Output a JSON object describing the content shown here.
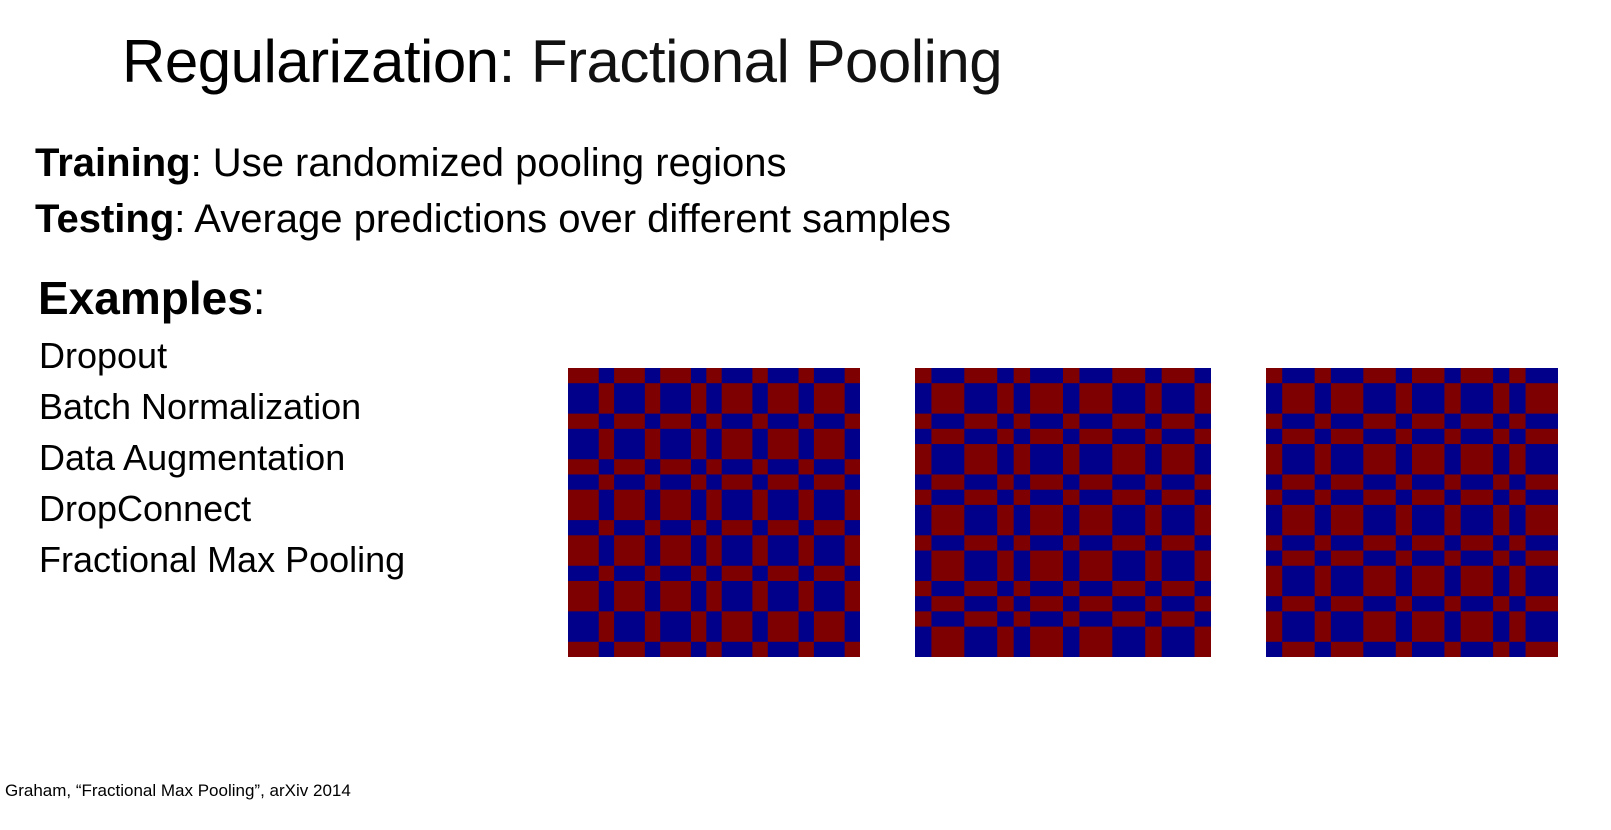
{
  "slide": {
    "title_bold": "Regularization",
    "title_rest": ": Fractional Pooling",
    "training_label": "Training",
    "training_text": ": Use randomized pooling regions",
    "testing_label": "Testing",
    "testing_text": ": Average predictions over different samples",
    "examples_label": "Examples",
    "examples_colon": ":",
    "examples": [
      "Dropout",
      "Batch Normalization",
      "Data Augmentation",
      "DropConnect",
      "Fractional Max Pooling"
    ],
    "citation": "Graham, “Fractional Max Pooling”, arXiv 2014"
  },
  "colors": {
    "region_a": "#7f0000",
    "region_b": "#00008b"
  },
  "pooling_grids": [
    {
      "col_widths": [
        2,
        1,
        2,
        1,
        2,
        1,
        1,
        2,
        1,
        2,
        1,
        2,
        1
      ],
      "row_heights": [
        1,
        2,
        1,
        2,
        1,
        1,
        2,
        1,
        2,
        1,
        2,
        2,
        1
      ]
    },
    {
      "col_widths": [
        1,
        2,
        2,
        1,
        1,
        2,
        1,
        2,
        2,
        1,
        2,
        1
      ],
      "row_heights": [
        1,
        2,
        1,
        1,
        2,
        1,
        1,
        2,
        1,
        2,
        1,
        1,
        1,
        2
      ]
    },
    {
      "col_widths": [
        1,
        2,
        1,
        2,
        2,
        1,
        2,
        1,
        2,
        1,
        1,
        2
      ],
      "row_heights": [
        1,
        2,
        1,
        1,
        2,
        1,
        1,
        2,
        1,
        1,
        2,
        1,
        2,
        1
      ]
    }
  ]
}
